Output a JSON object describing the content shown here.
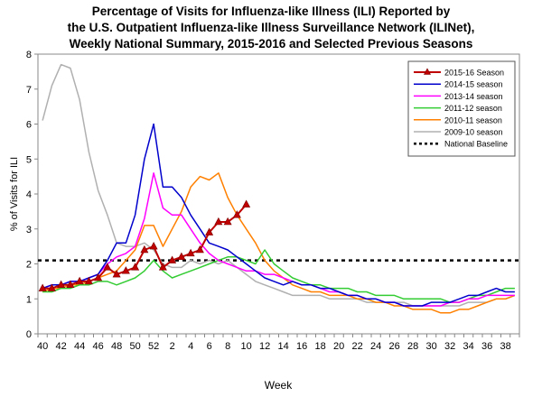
{
  "chart_data": {
    "type": "line",
    "title_lines": [
      "Percentage of Visits for Influenza-like Illness (ILI) Reported by",
      "the U.S. Outpatient Influenza-like Illness Surveillance Network (ILINet),",
      "Weekly National Summary, 2015-2016 and Selected Previous Seasons"
    ],
    "xlabel": "Week",
    "ylabel": "% of Visits for ILI",
    "ylim": [
      0,
      8
    ],
    "y_ticks": [
      "0",
      "1",
      "2",
      "3",
      "4",
      "5",
      "6",
      "7",
      "8"
    ],
    "x_ticks": [
      "40",
      "42",
      "44",
      "46",
      "48",
      "50",
      "52",
      "2",
      "4",
      "6",
      "8",
      "10",
      "12",
      "14",
      "16",
      "18",
      "20",
      "22",
      "24",
      "26",
      "28",
      "30",
      "32",
      "34",
      "36",
      "38"
    ],
    "legend_position": "top-right",
    "baseline": {
      "name": "National Baseline",
      "value": 2.1,
      "color": "#000000"
    },
    "series": [
      {
        "name": "2015-16 Season",
        "color": "#c00000",
        "marker": "triangle",
        "values": [
          1.3,
          1.3,
          1.4,
          1.4,
          1.5,
          1.5,
          1.6,
          1.9,
          1.7,
          1.8,
          1.9,
          2.4,
          2.5,
          1.9,
          2.1,
          2.2,
          2.3,
          2.4,
          2.9,
          3.2,
          3.2,
          3.4,
          3.7
        ]
      },
      {
        "name": "2014-15 season",
        "color": "#0000cc",
        "values": [
          1.3,
          1.4,
          1.4,
          1.5,
          1.5,
          1.6,
          1.7,
          2.1,
          2.6,
          2.6,
          3.4,
          5.0,
          6.0,
          4.2,
          4.2,
          3.9,
          3.4,
          3.0,
          2.6,
          2.5,
          2.4,
          2.2,
          2.0,
          1.8,
          1.6,
          1.5,
          1.4,
          1.5,
          1.4,
          1.4,
          1.3,
          1.3,
          1.2,
          1.1,
          1.1,
          1.0,
          1.0,
          0.9,
          0.9,
          0.8,
          0.8,
          0.8,
          0.9,
          0.9,
          0.9,
          1.0,
          1.1,
          1.1,
          1.2,
          1.3,
          1.2,
          1.2
        ]
      },
      {
        "name": "2013-14 season",
        "color": "#ff00ff",
        "values": [
          1.3,
          1.4,
          1.4,
          1.5,
          1.5,
          1.6,
          1.7,
          2.0,
          2.2,
          2.3,
          2.5,
          3.3,
          4.6,
          3.6,
          3.4,
          3.4,
          3.0,
          2.6,
          2.3,
          2.1,
          2.0,
          1.9,
          1.8,
          1.8,
          1.7,
          1.7,
          1.6,
          1.5,
          1.4,
          1.4,
          1.3,
          1.2,
          1.2,
          1.1,
          1.1,
          1.0,
          1.0,
          0.9,
          0.9,
          0.8,
          0.8,
          0.8,
          0.8,
          0.8,
          0.9,
          0.9,
          1.0,
          1.0,
          1.1,
          1.1,
          1.1,
          1.1
        ]
      },
      {
        "name": "2011-12 season",
        "color": "#33cc33",
        "values": [
          1.2,
          1.2,
          1.3,
          1.3,
          1.4,
          1.4,
          1.5,
          1.5,
          1.4,
          1.5,
          1.6,
          1.8,
          2.1,
          1.8,
          1.6,
          1.7,
          1.8,
          1.9,
          2.0,
          2.1,
          2.2,
          2.2,
          2.1,
          2.0,
          2.4,
          2.0,
          1.8,
          1.6,
          1.5,
          1.4,
          1.4,
          1.3,
          1.3,
          1.3,
          1.2,
          1.2,
          1.1,
          1.1,
          1.1,
          1.0,
          1.0,
          1.0,
          1.0,
          1.0,
          0.9,
          0.9,
          1.0,
          1.1,
          1.1,
          1.2,
          1.3,
          1.3
        ]
      },
      {
        "name": "2010-11 season",
        "color": "#ff8000",
        "values": [
          1.2,
          1.3,
          1.3,
          1.4,
          1.4,
          1.5,
          1.6,
          1.7,
          1.8,
          2.1,
          2.4,
          3.1,
          3.1,
          2.5,
          3.0,
          3.5,
          4.2,
          4.5,
          4.4,
          4.6,
          3.9,
          3.4,
          3.0,
          2.6,
          2.1,
          1.8,
          1.6,
          1.4,
          1.3,
          1.2,
          1.2,
          1.1,
          1.1,
          1.1,
          1.0,
          1.0,
          0.9,
          0.9,
          0.8,
          0.8,
          0.7,
          0.7,
          0.7,
          0.6,
          0.6,
          0.7,
          0.7,
          0.8,
          0.9,
          1.0,
          1.0,
          1.1
        ]
      },
      {
        "name": "2009-10 season",
        "color": "#b0b0b0",
        "values": [
          6.1,
          7.1,
          7.7,
          7.6,
          6.7,
          5.2,
          4.1,
          3.4,
          2.6,
          2.5,
          2.5,
          2.6,
          2.4,
          2.0,
          1.9,
          1.9,
          2.1,
          2.0,
          2.1,
          2.0,
          2.1,
          1.9,
          1.7,
          1.5,
          1.4,
          1.3,
          1.2,
          1.1,
          1.1,
          1.1,
          1.1,
          1.0,
          1.0,
          1.0,
          1.0,
          0.9,
          0.9,
          0.9,
          0.9,
          0.9,
          0.8,
          0.8,
          0.8,
          0.8,
          0.8,
          0.8,
          0.9,
          0.9,
          0.9,
          1.0,
          1.0,
          1.1
        ]
      }
    ]
  }
}
